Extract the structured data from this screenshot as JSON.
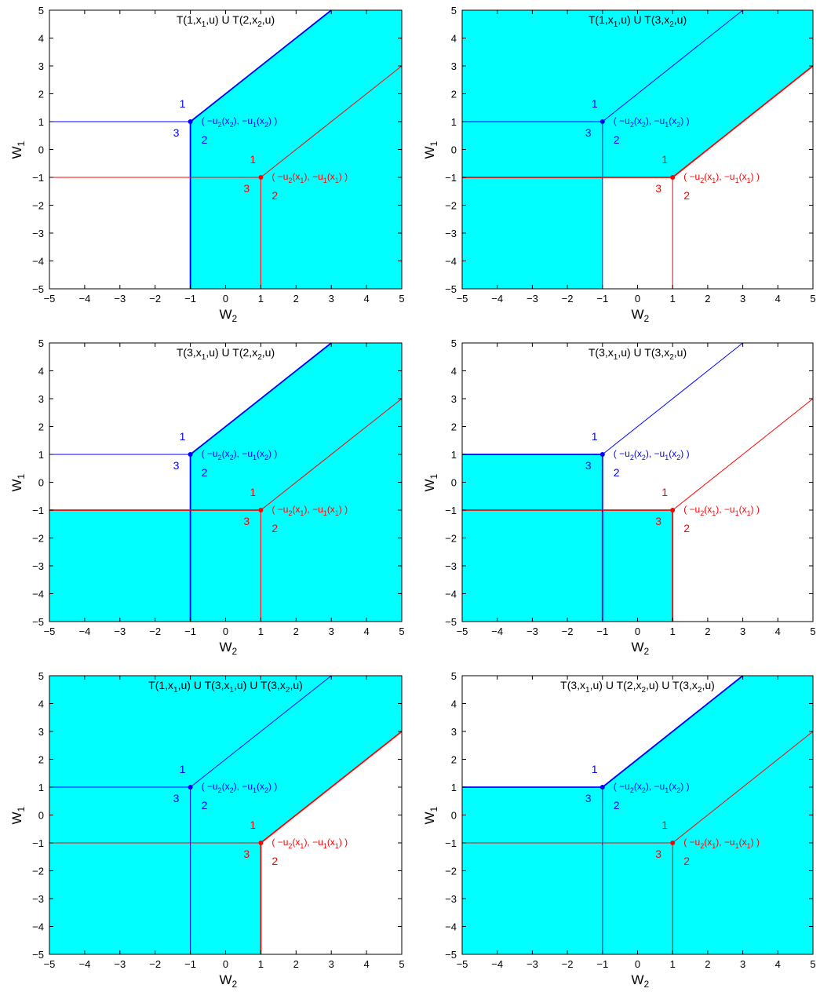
{
  "colors": {
    "region": "#00ffff",
    "blue": "#0000ff",
    "red": "#ff0000",
    "frame": "#000000"
  },
  "axes": {
    "xlabel": "W",
    "xlabel_sub": "2",
    "ylabel": "W",
    "ylabel_sub": "1",
    "xlim": [
      -5,
      5
    ],
    "ylim": [
      -5,
      5
    ],
    "xticks": [
      "−5",
      "−4",
      "−3",
      "−2",
      "−1",
      "0",
      "1",
      "2",
      "3",
      "4",
      "5"
    ],
    "yticks": [
      "5",
      "4",
      "3",
      "2",
      "1",
      "0",
      "−1",
      "−2",
      "−3",
      "−4",
      "−5"
    ]
  },
  "points": {
    "x2": {
      "x": -1,
      "y": 1,
      "color": "blue",
      "label_parts": [
        "( −u",
        "2",
        "(x",
        "2",
        "),  −u",
        "1",
        "(x",
        "2",
        ") )"
      ],
      "region_numbers": [
        "1",
        "2",
        "3"
      ]
    },
    "x1": {
      "x": 1,
      "y": -1,
      "color": "red",
      "label_parts": [
        "( −u",
        "2",
        "(x",
        "1",
        "),  −u",
        "1",
        "(x",
        "1",
        ") )"
      ],
      "region_numbers": [
        "1",
        "2",
        "3"
      ]
    }
  },
  "panels": [
    {
      "title_parts": [
        "T(1,x",
        "1",
        ",u) U T(2,x",
        "2",
        ",u)"
      ],
      "fill": [
        [
          -5,
          5
        ],
        [
          3,
          5
        ],
        [
          -1,
          1
        ],
        [
          -1,
          -5
        ],
        [
          5,
          -5
        ],
        [
          5,
          5
        ]
      ],
      "bold_blue": [
        "up",
        "down"
      ],
      "bold_red": []
    },
    {
      "title_parts": [
        "T(1,x",
        "1",
        ",u) U T(3,x",
        "2",
        ",u)"
      ],
      "fill": [
        [
          -5,
          5
        ],
        [
          5,
          5
        ],
        [
          5,
          3
        ],
        [
          1,
          -1
        ],
        [
          -1,
          -1
        ],
        [
          -1,
          -5
        ],
        [
          -5,
          -5
        ]
      ],
      "bold_blue": [],
      "bold_red": [
        "up",
        "left"
      ]
    },
    {
      "title_parts": [
        "T(3,x",
        "1",
        ",u) U T(2,x",
        "2",
        ",u)"
      ],
      "fill": [
        [
          -5,
          -1
        ],
        [
          -5,
          -5
        ],
        [
          5,
          -5
        ],
        [
          5,
          5
        ],
        [
          3,
          5
        ],
        [
          -1,
          1
        ],
        [
          -1,
          -1
        ]
      ],
      "bold_blue": [
        "up",
        "down"
      ],
      "bold_red": [
        "left"
      ]
    },
    {
      "title_parts": [
        "T(3,x",
        "1",
        ",u) U T(3,x",
        "2",
        ",u)"
      ],
      "fill": [
        [
          -5,
          1
        ],
        [
          -1,
          1
        ],
        [
          -1,
          -1
        ],
        [
          1,
          -1
        ],
        [
          1,
          -5
        ],
        [
          -5,
          -5
        ]
      ],
      "bold_blue": [
        "left",
        "down"
      ],
      "bold_red": [
        "left",
        "down"
      ]
    },
    {
      "title_parts": [
        "T(1,x",
        "1",
        ",u) U T(3,x",
        "1",
        ",u) U T(3,x",
        "2",
        ",u)"
      ],
      "fill": [
        [
          -5,
          5
        ],
        [
          5,
          5
        ],
        [
          5,
          3
        ],
        [
          1,
          -1
        ],
        [
          1,
          -5
        ],
        [
          -5,
          -5
        ]
      ],
      "bold_blue": [],
      "bold_red": [
        "up",
        "down"
      ]
    },
    {
      "title_parts": [
        "T(3,x",
        "1",
        ",u) U T(2,x",
        "2",
        ",u) U T(3,x",
        "2",
        ",u)"
      ],
      "fill": [
        [
          -5,
          1
        ],
        [
          -1,
          1
        ],
        [
          3,
          5
        ],
        [
          5,
          5
        ],
        [
          5,
          -5
        ],
        [
          -5,
          -5
        ]
      ],
      "bold_blue": [
        "up",
        "left"
      ],
      "bold_red": []
    }
  ]
}
